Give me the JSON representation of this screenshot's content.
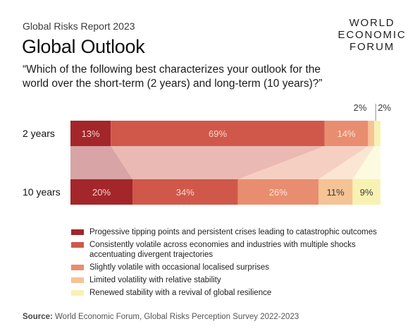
{
  "header": {
    "report": "Global Risks Report 2023",
    "title": "Global Outlook",
    "question": "“Which of the following best characterizes your outlook for the world over the short-term (2 years) and long-term (10 years)?”"
  },
  "logo": {
    "lines": [
      "WORLD",
      "ECONOMIC",
      "FORUM"
    ]
  },
  "chart_data": {
    "type": "bar",
    "orientation": "horizontal-stacked-100",
    "categories": [
      "2 years",
      "10 years"
    ],
    "series": [
      {
        "name": "Progessive tipping points and persistent crises leading to catastrophic outcomes",
        "values": [
          13,
          20
        ],
        "color": "#a3262a",
        "label_color": "#f1d2d0"
      },
      {
        "name": "Consistently volatile across economies and industries with multiple shocks accentuating divergent trajectories",
        "values": [
          69,
          34
        ],
        "color": "#d0584a",
        "label_color": "#f6d6d0"
      },
      {
        "name": "Slightly volatile with occasional localised surprises",
        "values": [
          14,
          26
        ],
        "color": "#e98d70",
        "label_color": "#fbe4d9"
      },
      {
        "name": "Limited volatility with relative stability",
        "values": [
          2,
          11
        ],
        "color": "#f5c395",
        "label_color": "#3a3a3a"
      },
      {
        "name": "Renewed stability with a revival of global resilience",
        "values": [
          2,
          9
        ],
        "color": "#f8f2b2",
        "label_color": "#3a3a3a"
      }
    ],
    "value_labels": [
      [
        "13%",
        "69%",
        "14%",
        "2%",
        "2%"
      ],
      [
        "20%",
        "34%",
        "26%",
        "11%",
        "9%"
      ]
    ],
    "legend_position": "bottom"
  },
  "source": {
    "prefix": "Source:",
    "text": " World Economic Forum, Global Risks Perception Survey 2022-2023"
  }
}
